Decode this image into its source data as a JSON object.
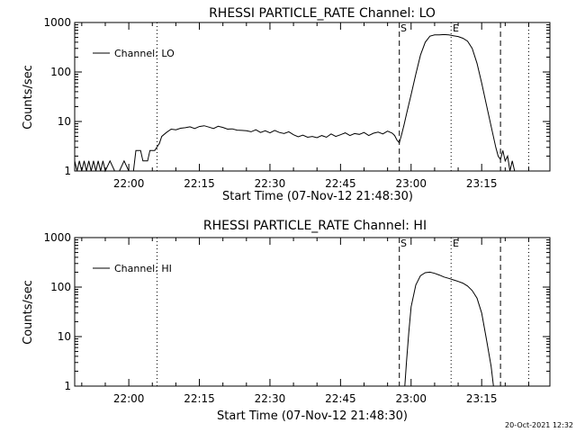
{
  "footer": {
    "timestamp": "20-Oct-2021 12:32"
  },
  "chart_data": [
    {
      "type": "line",
      "title": "RHESSI PARTICLE_RATE Channel: LO",
      "xlabel": "Start Time (07-Nov-12 21:48:30)",
      "ylabel": "Counts/sec",
      "yscale": "log",
      "ylim": [
        1,
        1000
      ],
      "xlim": [
        "21:48:30",
        "23:29:30"
      ],
      "xticks": [
        "22:00",
        "22:15",
        "22:30",
        "22:45",
        "23:00",
        "23:15"
      ],
      "yticks": [
        "1",
        "10",
        "100",
        "1000"
      ],
      "legend": {
        "position": "top-left",
        "entries": [
          "Channel: LO"
        ]
      },
      "annotations": [
        "S",
        "E"
      ],
      "vlines": [
        {
          "time": "22:06:00",
          "style": "dotted"
        },
        {
          "time": "22:57:30",
          "style": "dashed",
          "label": "S"
        },
        {
          "time": "23:08:30",
          "style": "dotted",
          "label": "E"
        },
        {
          "time": "23:19:00",
          "style": "dashed"
        },
        {
          "time": "23:25:00",
          "style": "dotted"
        }
      ],
      "series": [
        {
          "name": "Channel: LO",
          "points": [
            [
              "21:48:30",
              1.6
            ],
            [
              "21:49:00",
              1.0
            ],
            [
              "21:49:30",
              1.6
            ],
            [
              "21:50:00",
              1.0
            ],
            [
              "21:50:30",
              1.6
            ],
            [
              "21:51:00",
              1.0
            ],
            [
              "21:51:30",
              1.6
            ],
            [
              "21:52:00",
              1.0
            ],
            [
              "21:52:30",
              1.6
            ],
            [
              "21:53:00",
              1.0
            ],
            [
              "21:53:30",
              1.6
            ],
            [
              "21:54:00",
              1.0
            ],
            [
              "21:54:30",
              1.6
            ],
            [
              "21:55:00",
              1.0
            ],
            [
              "21:56:00",
              1.6
            ],
            [
              "21:57:00",
              1.0
            ],
            [
              "21:58:00",
              1.0
            ],
            [
              "21:59:00",
              1.6
            ],
            [
              "22:00:00",
              1.0
            ],
            [
              "22:01:00",
              1.0
            ],
            [
              "22:01:30",
              2.6
            ],
            [
              "22:02:30",
              2.6
            ],
            [
              "22:03:00",
              1.6
            ],
            [
              "22:04:00",
              1.6
            ],
            [
              "22:04:30",
              2.6
            ],
            [
              "22:05:30",
              2.6
            ],
            [
              "22:06:30",
              3.6
            ],
            [
              "22:07:00",
              5.0
            ],
            [
              "22:08:00",
              6.0
            ],
            [
              "22:09:00",
              7.0
            ],
            [
              "22:10:00",
              6.8
            ],
            [
              "22:11:00",
              7.3
            ],
            [
              "22:12:00",
              7.5
            ],
            [
              "22:13:00",
              7.8
            ],
            [
              "22:14:00",
              7.2
            ],
            [
              "22:15:00",
              7.9
            ],
            [
              "22:16:00",
              8.2
            ],
            [
              "22:17:00",
              7.7
            ],
            [
              "22:18:00",
              7.2
            ],
            [
              "22:19:00",
              8.0
            ],
            [
              "22:20:00",
              7.6
            ],
            [
              "22:21:00",
              7.0
            ],
            [
              "22:22:00",
              7.1
            ],
            [
              "22:23:00",
              6.7
            ],
            [
              "22:24:00",
              6.6
            ],
            [
              "22:25:00",
              6.5
            ],
            [
              "22:26:00",
              6.2
            ],
            [
              "22:27:00",
              6.8
            ],
            [
              "22:28:00",
              6.0
            ],
            [
              "22:29:00",
              6.5
            ],
            [
              "22:30:00",
              5.9
            ],
            [
              "22:31:00",
              6.6
            ],
            [
              "22:32:00",
              6.0
            ],
            [
              "22:33:00",
              5.7
            ],
            [
              "22:34:00",
              6.2
            ],
            [
              "22:35:00",
              5.4
            ],
            [
              "22:36:00",
              4.9
            ],
            [
              "22:37:00",
              5.3
            ],
            [
              "22:38:00",
              4.8
            ],
            [
              "22:39:00",
              5.0
            ],
            [
              "22:40:00",
              4.7
            ],
            [
              "22:41:00",
              5.2
            ],
            [
              "22:42:00",
              4.8
            ],
            [
              "22:43:00",
              5.6
            ],
            [
              "22:44:00",
              5.0
            ],
            [
              "22:45:00",
              5.4
            ],
            [
              "22:46:00",
              5.9
            ],
            [
              "22:47:00",
              5.2
            ],
            [
              "22:48:00",
              5.7
            ],
            [
              "22:49:00",
              5.5
            ],
            [
              "22:50:00",
              6.0
            ],
            [
              "22:51:00",
              5.2
            ],
            [
              "22:52:00",
              5.8
            ],
            [
              "22:53:00",
              6.1
            ],
            [
              "22:54:00",
              5.6
            ],
            [
              "22:55:00",
              6.4
            ],
            [
              "22:56:00",
              5.8
            ],
            [
              "22:56:30",
              5.2
            ],
            [
              "22:57:00",
              4.2
            ],
            [
              "22:57:30",
              3.7
            ],
            [
              "22:58:00",
              5.5
            ],
            [
              "22:58:30",
              8.5
            ],
            [
              "22:59:00",
              14
            ],
            [
              "23:00:00",
              35
            ],
            [
              "23:01:00",
              90
            ],
            [
              "23:02:00",
              220
            ],
            [
              "23:03:00",
              400
            ],
            [
              "23:04:00",
              530
            ],
            [
              "23:05:00",
              560
            ],
            [
              "23:06:00",
              560
            ],
            [
              "23:07:00",
              570
            ],
            [
              "23:08:00",
              560
            ],
            [
              "23:09:00",
              540
            ],
            [
              "23:10:00",
              520
            ],
            [
              "23:11:00",
              480
            ],
            [
              "23:12:00",
              420
            ],
            [
              "23:13:00",
              300
            ],
            [
              "23:14:00",
              150
            ],
            [
              "23:15:00",
              60
            ],
            [
              "23:16:00",
              22
            ],
            [
              "23:17:00",
              8
            ],
            [
              "23:18:00",
              3
            ],
            [
              "23:18:30",
              2.0
            ],
            [
              "23:19:00",
              1.7
            ],
            [
              "23:19:30",
              2.6
            ],
            [
              "23:20:00",
              1.6
            ],
            [
              "23:20:30",
              2.0
            ],
            [
              "23:21:00",
              1.0
            ],
            [
              "23:21:30",
              1.6
            ],
            [
              "23:22:00",
              1.0
            ]
          ]
        }
      ]
    },
    {
      "type": "line",
      "title": "RHESSI PARTICLE_RATE Channel: HI",
      "xlabel": "Start Time (07-Nov-12 21:48:30)",
      "ylabel": "Counts/sec",
      "yscale": "log",
      "ylim": [
        1,
        1000
      ],
      "xlim": [
        "21:48:30",
        "23:29:30"
      ],
      "xticks": [
        "22:00",
        "22:15",
        "22:30",
        "22:45",
        "23:00",
        "23:15"
      ],
      "yticks": [
        "1",
        "10",
        "100",
        "1000"
      ],
      "legend": {
        "position": "top-left",
        "entries": [
          "Channel: HI"
        ]
      },
      "annotations": [
        "S",
        "E"
      ],
      "vlines": [
        {
          "time": "22:06:00",
          "style": "dotted"
        },
        {
          "time": "22:57:30",
          "style": "dashed",
          "label": "S"
        },
        {
          "time": "23:08:30",
          "style": "dotted",
          "label": "E"
        },
        {
          "time": "23:19:00",
          "style": "dashed"
        },
        {
          "time": "23:25:00",
          "style": "dotted"
        }
      ],
      "series": [
        {
          "name": "Channel: HI",
          "points": [
            [
              "22:58:40",
              1.0
            ],
            [
              "22:59:00",
              3.0
            ],
            [
              "22:59:30",
              12
            ],
            [
              "23:00:00",
              40
            ],
            [
              "23:01:00",
              110
            ],
            [
              "23:02:00",
              170
            ],
            [
              "23:03:00",
              195
            ],
            [
              "23:04:00",
              200
            ],
            [
              "23:05:00",
              190
            ],
            [
              "23:06:00",
              175
            ],
            [
              "23:07:00",
              160
            ],
            [
              "23:08:00",
              150
            ],
            [
              "23:09:00",
              140
            ],
            [
              "23:10:00",
              130
            ],
            [
              "23:11:00",
              120
            ],
            [
              "23:12:00",
              105
            ],
            [
              "23:13:00",
              85
            ],
            [
              "23:14:00",
              60
            ],
            [
              "23:15:00",
              30
            ],
            [
              "23:16:00",
              9
            ],
            [
              "23:17:00",
              2.5
            ],
            [
              "23:17:30",
              1.0
            ]
          ]
        }
      ]
    }
  ]
}
